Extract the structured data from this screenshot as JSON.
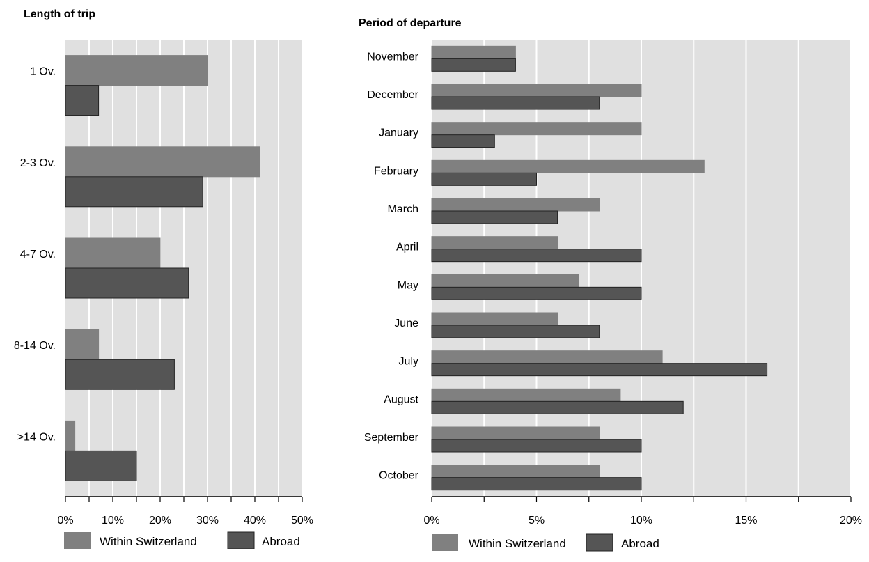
{
  "colors": {
    "within": "#808080",
    "abroad": "#555555",
    "plot_bg": "#e0e0e0",
    "grid": "#ffffff",
    "bar_stroke": "#222222"
  },
  "legend": {
    "within_label": "Within Switzerland",
    "abroad_label": "Abroad"
  },
  "chart_data": [
    {
      "type": "bar",
      "orientation": "horizontal",
      "title": "Length of trip",
      "categories": [
        "1 Ov.",
        "2-3 Ov.",
        "4-7 Ov.",
        "8-14 Ov.",
        ">14 Ov."
      ],
      "series": [
        {
          "name": "Within Switzerland",
          "values": [
            30,
            41,
            20,
            7,
            2
          ]
        },
        {
          "name": "Abroad",
          "values": [
            7,
            29,
            26,
            23,
            15
          ]
        }
      ],
      "xlim": [
        0,
        50
      ],
      "xticks": [
        "0%",
        "10%",
        "20%",
        "30%",
        "40%",
        "50%"
      ],
      "grid": true,
      "legend_position": "bottom"
    },
    {
      "type": "bar",
      "orientation": "horizontal",
      "title": "Period of departure",
      "categories": [
        "November",
        "December",
        "January",
        "February",
        "March",
        "April",
        "May",
        "June",
        "July",
        "August",
        "September",
        "October"
      ],
      "series": [
        {
          "name": "Within Switzerland",
          "values": [
            4,
            10,
            10,
            13,
            8,
            6,
            7,
            6,
            11,
            9,
            8,
            8
          ]
        },
        {
          "name": "Abroad",
          "values": [
            4,
            8,
            3,
            5,
            6,
            10,
            10,
            8,
            16,
            12,
            10,
            10
          ]
        }
      ],
      "xlim": [
        0,
        20
      ],
      "xticks": [
        "0%",
        "5%",
        "10%",
        "15%",
        "20%"
      ],
      "grid": true,
      "legend_position": "bottom"
    }
  ]
}
